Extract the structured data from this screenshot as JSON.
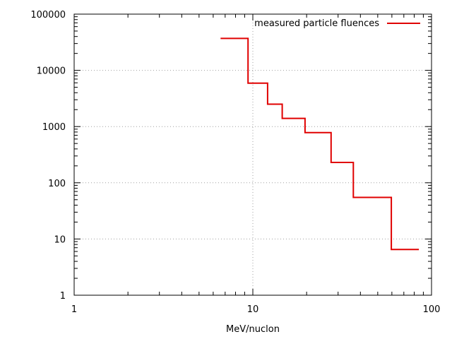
{
  "chart_data": {
    "type": "line",
    "step": true,
    "title": "",
    "xlabel": "MeV/nuclon",
    "ylabel": "",
    "xscale": "log",
    "yscale": "log",
    "xlim": [
      1,
      100
    ],
    "ylim": [
      1,
      100000
    ],
    "x_ticks": [
      "1",
      "10",
      "100"
    ],
    "y_ticks": [
      "1",
      "10",
      "100",
      "1000",
      "10000",
      "100000"
    ],
    "grid": true,
    "legend": "top-right",
    "series": [
      {
        "name": "measured particle fluences",
        "color": "#e00000",
        "x": [
          6.6,
          9.4,
          9.4,
          12.1,
          12.1,
          14.6,
          14.6,
          19.6,
          19.6,
          27.4,
          27.4,
          36.5,
          36.5,
          59.6,
          59.6,
          85.0
        ],
        "y": [
          37000,
          37000,
          5900,
          5900,
          2500,
          2500,
          1400,
          1400,
          780,
          780,
          230,
          230,
          55,
          55,
          6.5,
          6.5
        ]
      }
    ]
  }
}
